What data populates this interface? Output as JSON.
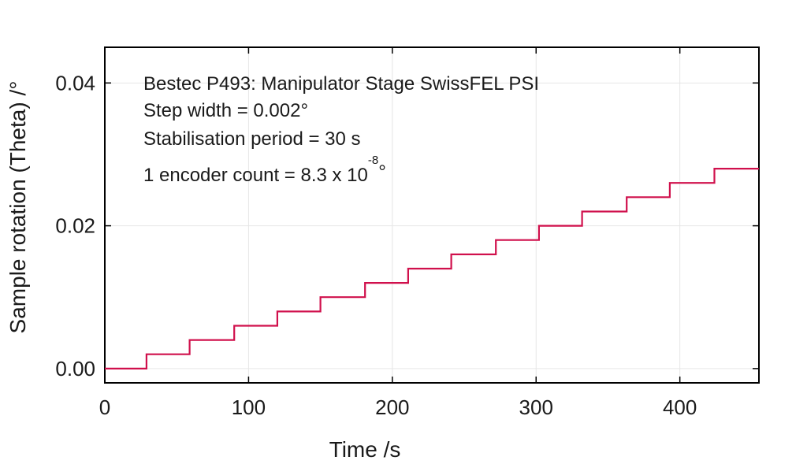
{
  "chart_data": {
    "type": "line",
    "xlabel": "Time /s",
    "ylabel": "Sample rotation (Theta) /°",
    "xlim": [
      0,
      455
    ],
    "ylim": [
      -0.002,
      0.045
    ],
    "grid": true,
    "x_ticks": [
      0,
      100,
      200,
      300,
      400
    ],
    "x_tick_labels": [
      "0",
      "100",
      "200",
      "300",
      "400"
    ],
    "y_ticks": [
      0.0,
      0.02,
      0.04
    ],
    "y_tick_labels": [
      "0.00",
      "0.02",
      "0.04"
    ],
    "annotations": {
      "line1": "Bestec P493: Manipulator Stage SwissFEL PSI",
      "line2": "Step width = 0.002°",
      "line3": "Stabilisation period = 30 s",
      "line4_prefix": "1 encoder count = 8.3 x 10",
      "line4_exponent": "-8",
      "line4_suffix": "°"
    },
    "series": [
      {
        "name": "Sample rotation",
        "color": "#d0104c",
        "step_times": [
          0,
          29,
          59,
          90,
          120,
          150,
          181,
          211,
          241,
          272,
          302,
          332,
          363,
          393,
          424
        ],
        "step_values": [
          0.0,
          0.002,
          0.004,
          0.006,
          0.008,
          0.01,
          0.012,
          0.014,
          0.016,
          0.018,
          0.02,
          0.022,
          0.024,
          0.026,
          0.028
        ],
        "x_end": 455
      }
    ]
  }
}
